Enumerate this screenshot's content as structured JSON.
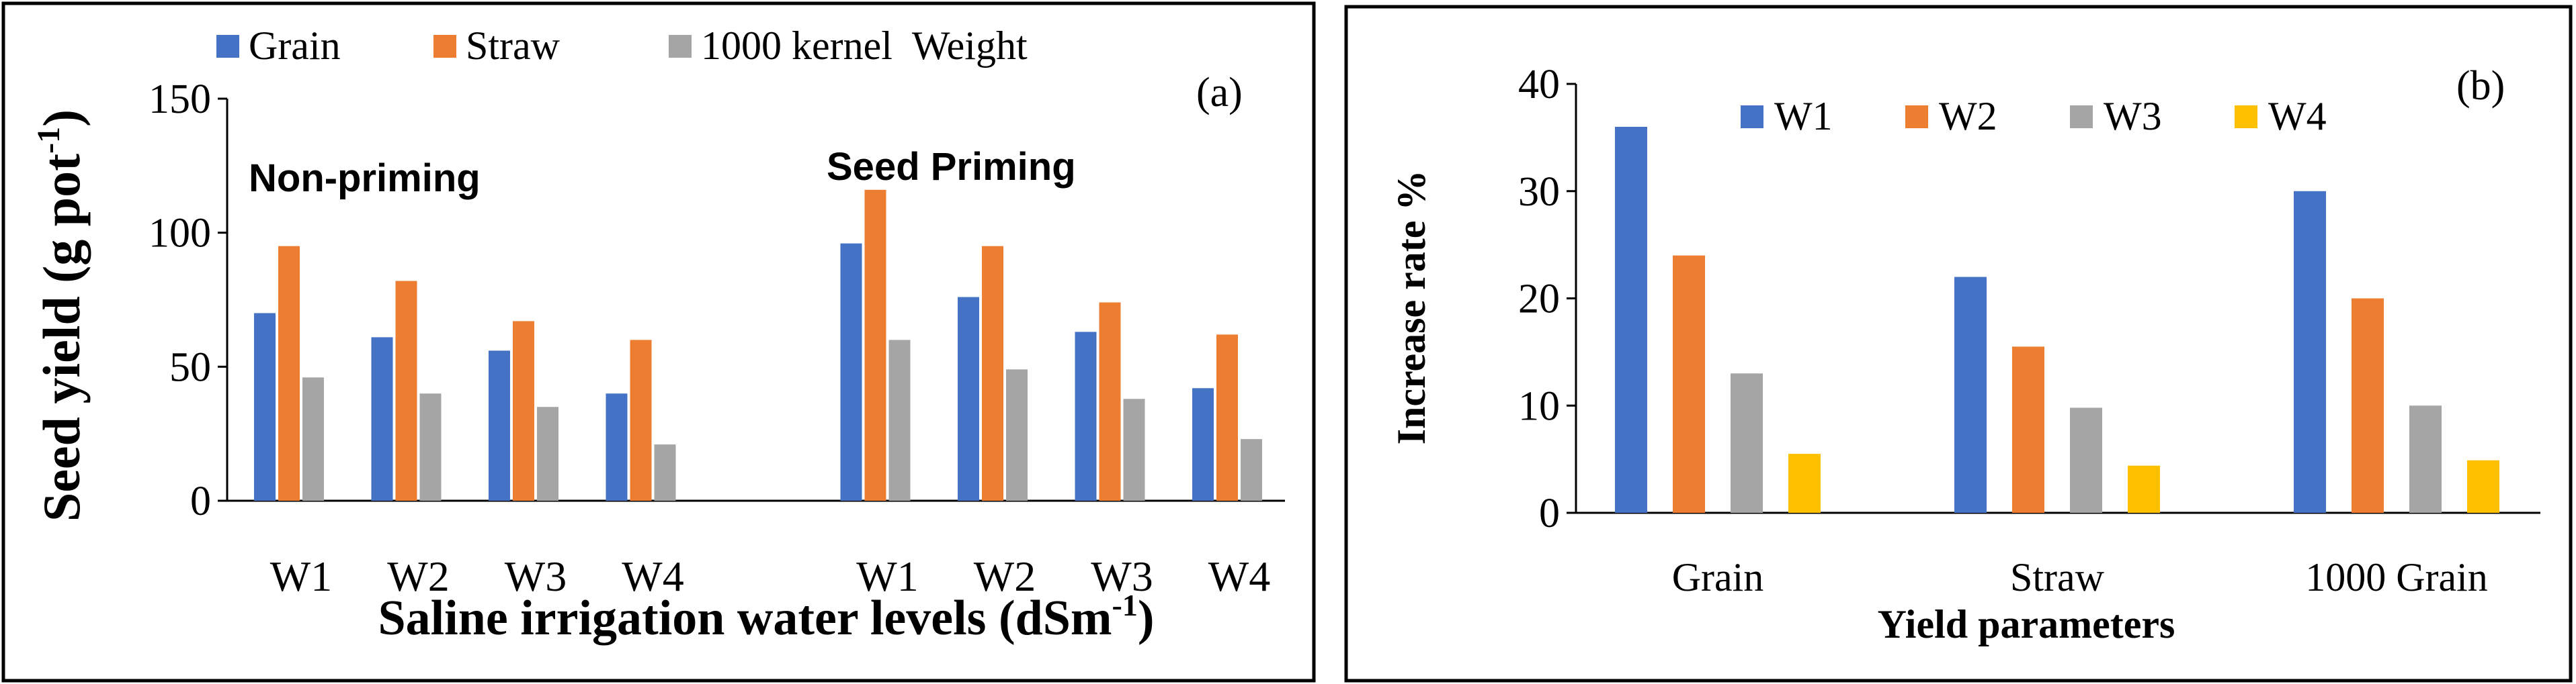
{
  "chart_data": [
    {
      "type": "bar",
      "panel_label": "(a)",
      "title": "",
      "xlabel": "Saline irrigation water levels (dSm",
      "xlabel_sup": "-1",
      "xlabel_end": ")",
      "ylabel": "Seed yield (g pot",
      "ylabel_sup": "-1",
      "ylabel_end": ")",
      "ylim": [
        0,
        150
      ],
      "yticks": [
        "0",
        "50",
        "100",
        "150"
      ],
      "ytick_values": [
        0,
        50,
        100,
        150
      ],
      "categories": [
        "W1",
        "W2",
        "W3",
        "W4",
        "",
        "W1",
        "W2",
        "W3",
        "W4"
      ],
      "group_annotations": [
        "Non-priming",
        "Seed Priming"
      ],
      "legend": [
        "Grain",
        "Straw",
        "1000 kernel  Weight"
      ],
      "legend_position": "top",
      "series": [
        {
          "name": "Grain",
          "color": "#4472C4",
          "values": [
            70,
            61,
            56,
            40,
            null,
            96,
            76,
            63,
            42
          ]
        },
        {
          "name": "Straw",
          "color": "#ED7D31",
          "values": [
            95,
            82,
            67,
            60,
            null,
            116,
            95,
            74,
            62
          ]
        },
        {
          "name": "1000 kernel  Weight",
          "color": "#A5A5A5",
          "values": [
            46,
            40,
            35,
            21,
            null,
            60,
            49,
            38,
            23
          ]
        }
      ]
    },
    {
      "type": "bar",
      "panel_label": "(b)",
      "title": "",
      "xlabel": "Yield parameters",
      "ylabel": "Increase rate %",
      "ylim": [
        0,
        40
      ],
      "yticks": [
        "0",
        "10",
        "20",
        "30",
        "40"
      ],
      "ytick_values": [
        0,
        10,
        20,
        30,
        40
      ],
      "categories": [
        "Grain",
        "Straw",
        "1000 Grain"
      ],
      "legend": [
        "W1",
        "W2",
        "W3",
        "W4"
      ],
      "legend_position": "top",
      "series": [
        {
          "name": "W1",
          "color": "#4472C4",
          "values": [
            36,
            22,
            30
          ]
        },
        {
          "name": "W2",
          "color": "#ED7D31",
          "values": [
            24,
            15.5,
            20
          ]
        },
        {
          "name": "W3",
          "color": "#A5A5A5",
          "values": [
            13,
            9.8,
            10
          ]
        },
        {
          "name": "W4",
          "color": "#FFC000",
          "values": [
            5.5,
            4.4,
            4.9
          ]
        }
      ]
    }
  ]
}
